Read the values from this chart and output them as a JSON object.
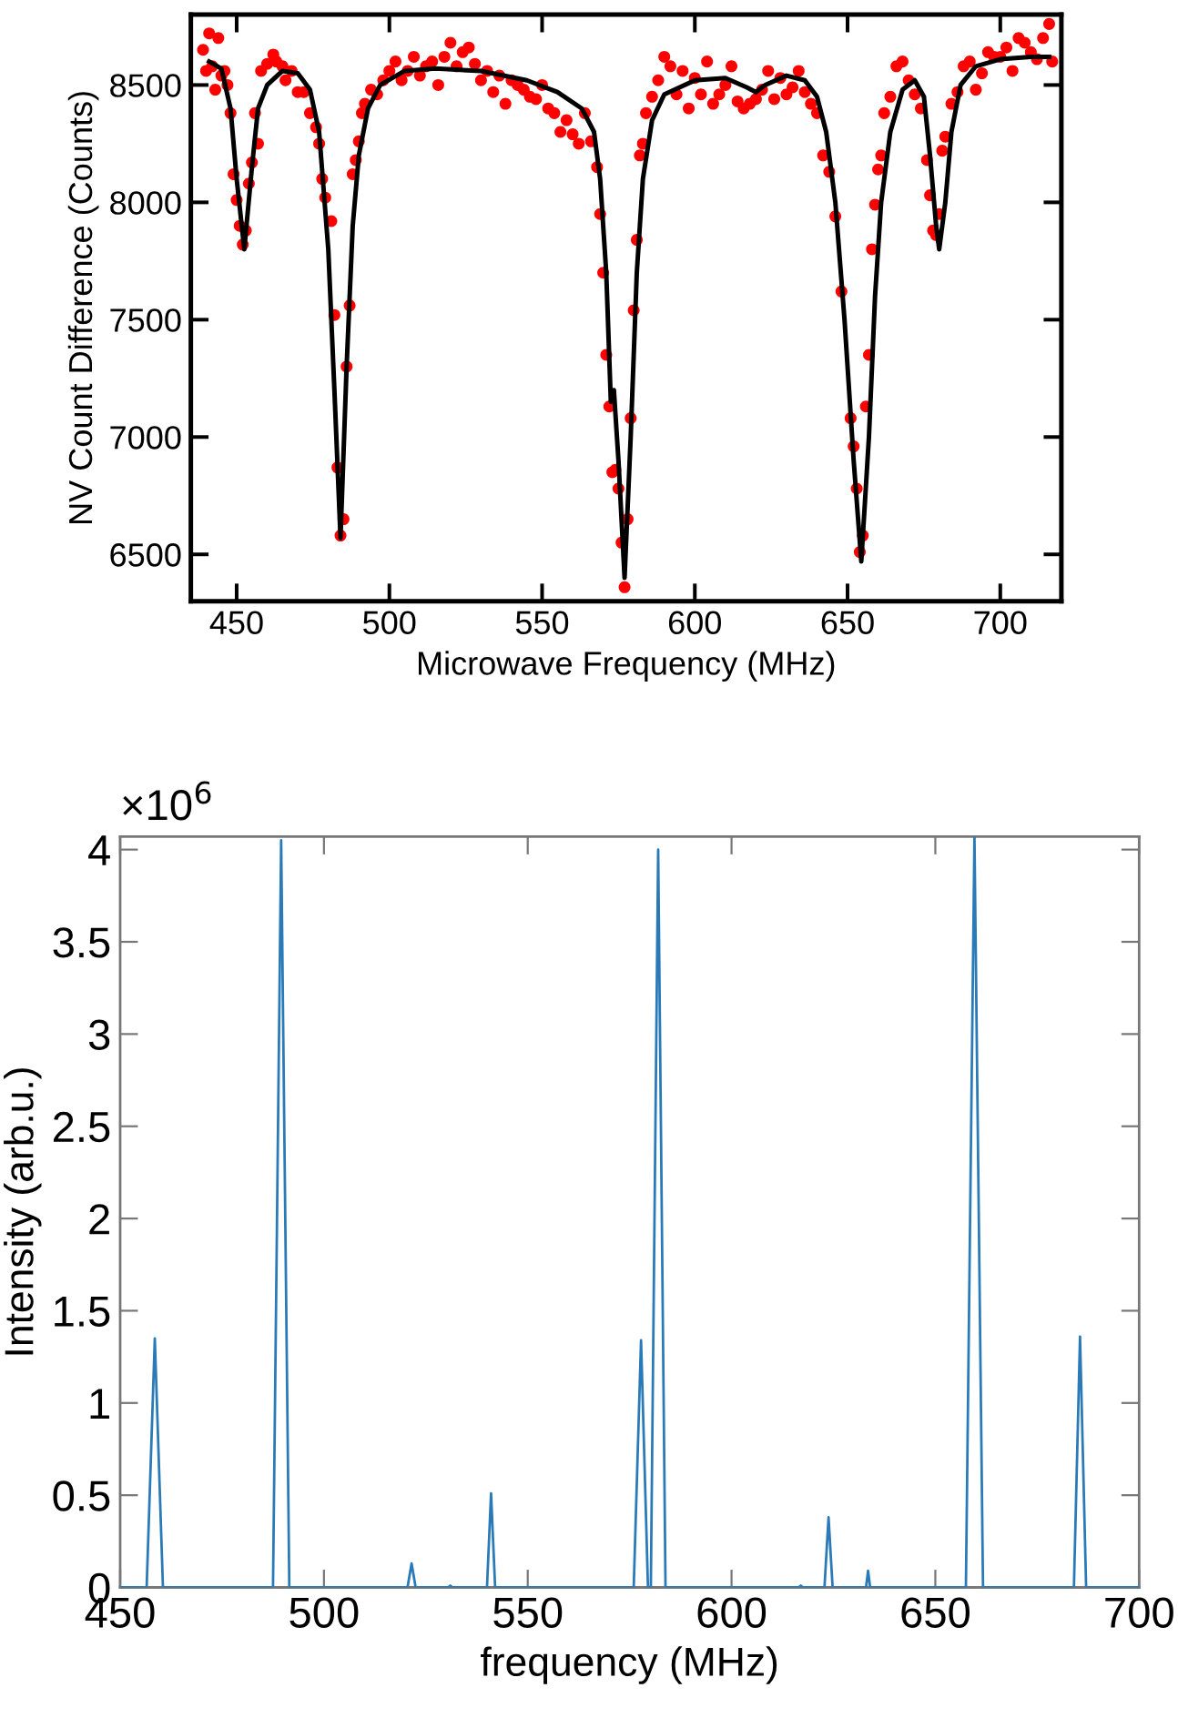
{
  "chart_data": [
    {
      "type": "scatter",
      "xlabel": "Microwave Frequency (MHz)",
      "ylabel": "NV Count Difference (Counts)",
      "xlim": [
        435,
        720
      ],
      "ylim": [
        6300,
        8800
      ],
      "xticks": [
        450,
        500,
        550,
        600,
        650,
        700
      ],
      "yticks": [
        6500,
        7000,
        7500,
        8000,
        8500
      ],
      "grid": false,
      "legend": false,
      "series": [
        {
          "type": "scatter",
          "marker": "circle",
          "color": "#ff0000",
          "x": [
            439,
            440,
            441,
            442,
            443,
            444,
            445,
            446,
            447,
            448,
            449,
            450,
            451,
            452,
            453,
            454,
            455,
            456,
            457,
            458,
            460,
            462,
            463,
            465,
            466,
            468,
            470,
            472,
            474,
            476,
            477,
            478,
            479,
            481,
            482,
            483,
            484,
            485,
            486,
            487,
            488,
            489,
            490,
            491,
            492,
            494,
            496,
            498,
            500,
            502,
            504,
            506,
            508,
            510,
            512,
            514,
            516,
            518,
            520,
            522,
            524,
            526,
            528,
            530,
            532,
            534,
            536,
            538,
            540,
            542,
            544,
            546,
            548,
            550,
            552,
            554,
            556,
            558,
            560,
            562,
            564,
            566,
            568,
            569,
            570,
            571,
            572,
            573,
            574,
            575,
            576,
            577,
            578,
            579,
            580,
            581,
            582,
            583,
            584,
            586,
            588,
            590,
            592,
            594,
            596,
            598,
            600,
            602,
            604,
            606,
            608,
            610,
            612,
            614,
            616,
            618,
            620,
            622,
            624,
            626,
            628,
            630,
            632,
            634,
            636,
            638,
            640,
            642,
            644,
            646,
            648,
            651,
            652,
            653,
            654,
            655,
            656,
            657,
            658,
            659,
            660,
            661,
            662,
            664,
            666,
            668,
            670,
            672,
            674,
            676,
            677,
            678,
            679,
            680,
            681,
            682,
            684,
            686,
            688,
            690,
            692,
            694,
            696,
            698,
            700,
            702,
            704,
            706,
            708,
            710,
            712,
            714,
            716,
            717
          ],
          "values": [
            8650,
            8560,
            8720,
            8580,
            8480,
            8700,
            8540,
            8560,
            8500,
            8380,
            8120,
            8010,
            7900,
            7820,
            7880,
            8080,
            8170,
            8380,
            8250,
            8560,
            8590,
            8630,
            8600,
            8580,
            8520,
            8560,
            8470,
            8470,
            8380,
            8320,
            8250,
            8100,
            8020,
            7920,
            7520,
            6870,
            6580,
            6650,
            7300,
            7560,
            8120,
            8180,
            8260,
            8380,
            8420,
            8480,
            8460,
            8520,
            8560,
            8600,
            8520,
            8560,
            8620,
            8540,
            8580,
            8600,
            8500,
            8620,
            8680,
            8580,
            8640,
            8660,
            8590,
            8520,
            8560,
            8470,
            8540,
            8420,
            8520,
            8500,
            8480,
            8450,
            8440,
            8500,
            8400,
            8380,
            8300,
            8350,
            8290,
            8250,
            8380,
            8260,
            8150,
            7950,
            7700,
            7350,
            7130,
            6850,
            6860,
            6780,
            6550,
            6360,
            6650,
            7080,
            7540,
            7840,
            8200,
            8250,
            8380,
            8450,
            8520,
            8620,
            8580,
            8460,
            8560,
            8400,
            8530,
            8460,
            8600,
            8420,
            8460,
            8500,
            8580,
            8430,
            8400,
            8420,
            8440,
            8480,
            8560,
            8440,
            8530,
            8460,
            8490,
            8560,
            8470,
            8420,
            8380,
            8200,
            8130,
            7940,
            7620,
            7080,
            6960,
            6780,
            6510,
            6580,
            7130,
            7350,
            7800,
            7990,
            8140,
            8200,
            8380,
            8450,
            8580,
            8600,
            8520,
            8460,
            8400,
            8180,
            8030,
            7880,
            7860,
            7950,
            8220,
            8280,
            8420,
            8470,
            8580,
            8600,
            8480,
            8550,
            8640,
            8620,
            8620,
            8660,
            8560,
            8700,
            8680,
            8640,
            8610,
            8700,
            8760,
            8600
          ]
        },
        {
          "type": "line",
          "marker": "none",
          "line_style": "solid",
          "color": "#000000",
          "x": [
            441,
            445,
            448,
            450,
            452.5,
            455,
            457,
            460,
            465,
            470,
            474,
            477,
            480,
            482,
            484,
            486,
            488,
            490,
            493,
            497,
            505,
            515,
            530,
            545,
            555,
            563,
            567,
            569,
            571,
            572.5,
            573.5,
            575,
            577,
            579,
            581,
            583,
            586,
            590,
            600,
            610,
            617,
            620,
            623,
            630,
            636,
            640,
            643,
            646,
            649,
            652,
            654.5,
            657,
            659,
            661,
            664,
            668,
            672,
            675,
            677,
            679,
            680,
            682,
            684,
            687,
            692,
            700,
            710,
            716
          ],
          "values": [
            8600,
            8570,
            8400,
            8100,
            7800,
            8150,
            8400,
            8500,
            8560,
            8550,
            8480,
            8300,
            7800,
            7200,
            6570,
            7300,
            7900,
            8200,
            8400,
            8500,
            8560,
            8570,
            8560,
            8520,
            8470,
            8400,
            8300,
            8100,
            7700,
            7150,
            7200,
            6900,
            6400,
            7000,
            7700,
            8100,
            8350,
            8460,
            8520,
            8530,
            8490,
            8470,
            8500,
            8540,
            8520,
            8450,
            8300,
            8000,
            7500,
            6900,
            6470,
            7000,
            7600,
            8000,
            8300,
            8480,
            8520,
            8450,
            8200,
            7900,
            7800,
            8000,
            8300,
            8500,
            8580,
            8610,
            8620,
            8620
          ]
        }
      ]
    },
    {
      "type": "line",
      "xlabel": "frequency (MHz)",
      "ylabel": "Intensity (arb.u.)",
      "annotations": [
        "×10$^{6}$"
      ],
      "xlim": [
        450,
        700
      ],
      "ylim": [
        0,
        4.07
      ],
      "xticks": [
        450,
        500,
        550,
        600,
        650,
        700
      ],
      "yticks": [
        0,
        0.5,
        1,
        1.5,
        2,
        2.5,
        3,
        3.5,
        4
      ],
      "grid": false,
      "legend": false,
      "series": [
        {
          "color": "#2a7ab8",
          "marker": "none",
          "line_style": "solid",
          "x": [
            450,
            456.5,
            458.5,
            460.5,
            487.5,
            489.5,
            491.5,
            520.5,
            521.5,
            522.5,
            530.5,
            531,
            531.5,
            540,
            541,
            542,
            576,
            577.8,
            579.5,
            580.2,
            582,
            583.8,
            616.5,
            617,
            617.5,
            622.8,
            623.8,
            624.8,
            633,
            633.5,
            634,
            657.5,
            659.6,
            661.7,
            684,
            685.5,
            687,
            700
          ],
          "values": [
            0,
            0,
            1.35,
            0,
            0,
            4.05,
            0,
            0,
            0.13,
            0,
            0,
            0.01,
            0,
            0,
            0.51,
            0,
            0,
            1.34,
            0,
            0,
            4.0,
            0,
            0,
            0.01,
            0,
            0,
            0.38,
            0,
            0,
            0.09,
            0,
            0,
            4.07,
            0,
            0,
            1.36,
            0,
            0
          ]
        }
      ]
    }
  ]
}
